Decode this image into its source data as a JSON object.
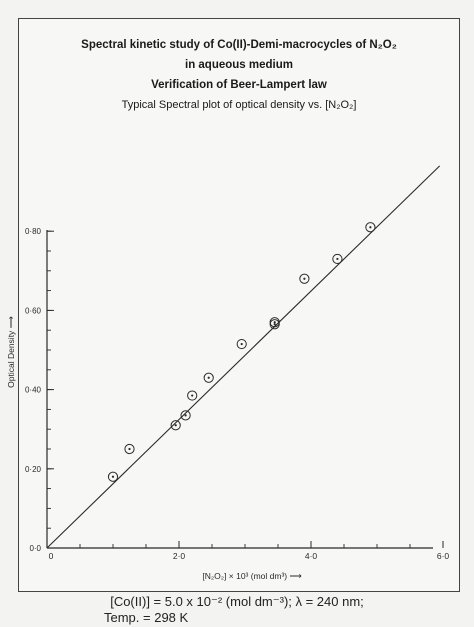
{
  "header": {
    "title_line1": "Spectral kinetic study of Co(II)-Demi-macrocycles of N₂O₂",
    "title_line2": "in aqueous medium",
    "title_line3": "Verification of Beer-Lampert law",
    "subtitle": "Typical Spectral plot of optical density vs. [N₂O₂]"
  },
  "chart_data": {
    "type": "scatter",
    "title": "Verification of Beer-Lampert law",
    "subtitle": "Typical Spectral plot of optical density vs. [N₂O₂]",
    "xlabel": "[N₂O₂] × 10³ (mol dm³) ⟶",
    "ylabel": "Optical Density ⟶",
    "xlim": [
      0,
      6.0
    ],
    "ylim": [
      0,
      1.0
    ],
    "x_ticks": [
      0,
      2.0,
      4.0,
      6.0
    ],
    "x_tick_labels": [
      "0",
      "2·0",
      "4·0",
      "6·0"
    ],
    "y_ticks": [
      0,
      0.2,
      0.4,
      0.6,
      0.8
    ],
    "y_tick_labels": [
      "0·0",
      "0·20",
      "0·40",
      "0·60",
      "0·80"
    ],
    "grid": false,
    "points": [
      {
        "x": 1.0,
        "y": 0.18
      },
      {
        "x": 1.25,
        "y": 0.25
      },
      {
        "x": 1.95,
        "y": 0.31
      },
      {
        "x": 2.1,
        "y": 0.335
      },
      {
        "x": 2.2,
        "y": 0.385
      },
      {
        "x": 2.45,
        "y": 0.43
      },
      {
        "x": 2.95,
        "y": 0.515
      },
      {
        "x": 3.45,
        "y": 0.565
      },
      {
        "x": 3.45,
        "y": 0.57
      },
      {
        "x": 3.9,
        "y": 0.68
      },
      {
        "x": 4.4,
        "y": 0.73
      },
      {
        "x": 4.9,
        "y": 0.81
      }
    ],
    "fit_line": {
      "x": [
        0,
        5.95
      ],
      "y": [
        0,
        0.965
      ]
    }
  },
  "footer": {
    "condition_line1": "[Co(II)] = 5.0 x 10⁻² (mol dm⁻³);   λ = 240 nm;",
    "condition_line2": "Temp.  =  298 K"
  },
  "colors": {
    "ink": "#2a2a2a",
    "frame": "#444444",
    "background": "#f7f7f5"
  }
}
